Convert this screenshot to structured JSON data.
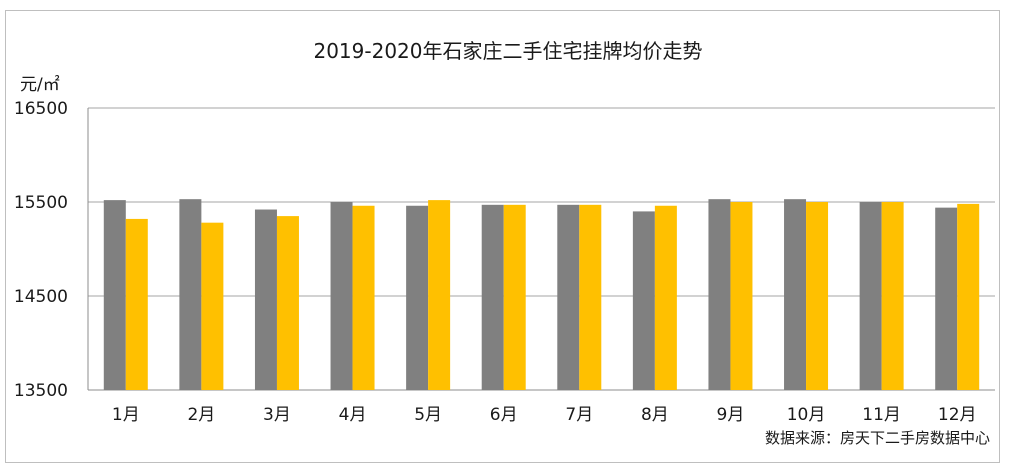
{
  "chart_data": {
    "type": "bar",
    "title": "2019-2020年石家庄二手住宅挂牌均价走势",
    "ylabel": "元/㎡",
    "xlabel": "",
    "categories": [
      "1月",
      "2月",
      "3月",
      "4月",
      "5月",
      "6月",
      "7月",
      "8月",
      "9月",
      "10月",
      "11月",
      "12月"
    ],
    "series": [
      {
        "color": "#808080",
        "values": [
          15520,
          15530,
          15420,
          15500,
          15460,
          15470,
          15470,
          15400,
          15530,
          15530,
          15500,
          15440
        ]
      },
      {
        "color": "#ffc000",
        "values": [
          15320,
          15280,
          15350,
          15460,
          15520,
          15470,
          15470,
          15460,
          15500,
          15500,
          15500,
          15480
        ]
      }
    ],
    "ylim": [
      13500,
      16500
    ],
    "yticks": [
      13500,
      14500,
      15500,
      16500
    ],
    "grid": true,
    "legend": "none",
    "source": "数据来源：房天下二手房数据中心"
  }
}
